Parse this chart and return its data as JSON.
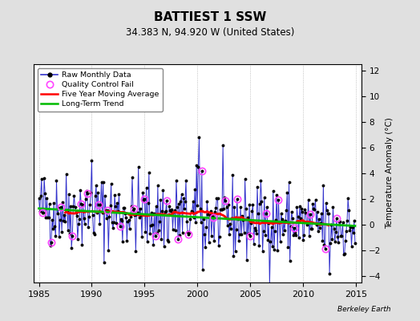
{
  "title": "BATTIEST 1 SSW",
  "subtitle": "34.383 N, 94.920 W (United States)",
  "ylabel_right": "Temperature Anomaly (°C)",
  "watermark": "Berkeley Earth",
  "xlim": [
    1984.5,
    2015.5
  ],
  "ylim": [
    -4.5,
    12.5
  ],
  "yticks": [
    -4,
    -2,
    0,
    2,
    4,
    6,
    8,
    10,
    12
  ],
  "xticks": [
    1985,
    1990,
    1995,
    2000,
    2005,
    2010,
    2015
  ],
  "bg_color": "#e0e0e0",
  "plot_bg_color": "#ffffff",
  "grid_color": "#b0b0b0",
  "raw_line_color": "#3333cc",
  "raw_marker_color": "#000000",
  "qc_fail_color": "#ff44ff",
  "moving_avg_color": "#ff0000",
  "trend_color": "#00bb00",
  "legend_labels": [
    "Raw Monthly Data",
    "Quality Control Fail",
    "Five Year Moving Average",
    "Long-Term Trend"
  ],
  "seed": 42
}
